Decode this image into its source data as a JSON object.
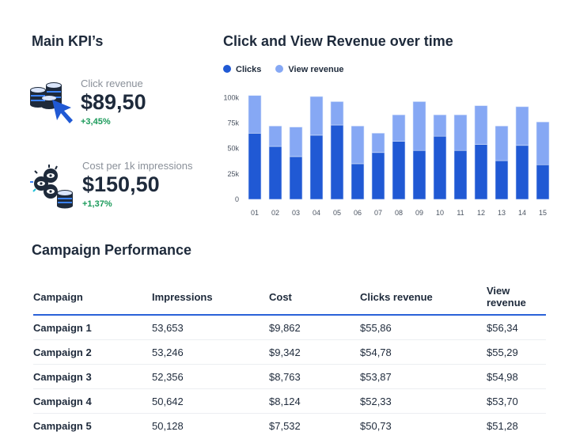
{
  "kpi": {
    "title": "Main KPI’s",
    "items": [
      {
        "label": "Click revenue",
        "value": "$89,50",
        "change": "+3,45%",
        "icon": "coins-cursor-icon"
      },
      {
        "label": "Cost per 1k impressions",
        "value": "$150,50",
        "change": "+1,37%",
        "icon": "eyes-coins-icon"
      }
    ]
  },
  "chart_title": "Click and View Revenue over time",
  "chart_data": {
    "type": "bar",
    "stacked": true,
    "title": "Click and View Revenue over time",
    "categories": [
      "01",
      "02",
      "03",
      "04",
      "05",
      "06",
      "07",
      "08",
      "09",
      "10",
      "11",
      "12",
      "13",
      "14",
      "15"
    ],
    "series": [
      {
        "name": "Clicks",
        "color": "#2059d4",
        "values": [
          65,
          52,
          42,
          63,
          73,
          35,
          46,
          57,
          48,
          62,
          48,
          54,
          38,
          53,
          34
        ]
      },
      {
        "name": "View revenue",
        "color": "#86a8f4",
        "values": [
          37,
          20,
          29,
          38,
          23,
          37,
          19,
          26,
          48,
          21,
          35,
          38,
          34,
          38,
          42
        ]
      }
    ],
    "yticks": [
      "0",
      "25k",
      "50k",
      "75k",
      "100k"
    ],
    "ylim": [
      0,
      100
    ],
    "legend": "top-left",
    "grid": false
  },
  "table": {
    "title": "Campaign Performance",
    "headers": [
      "Campaign",
      "Impressions",
      "Cost",
      "Clicks revenue",
      "View revenue"
    ],
    "rows": [
      [
        "Campaign 1",
        "53,653",
        "$9,862",
        "$55,86",
        "$56,34"
      ],
      [
        "Campaign 2",
        "53,246",
        "$9,342",
        "$54,78",
        "$55,29"
      ],
      [
        "Campaign 3",
        "52,356",
        "$8,763",
        "$53,87",
        "$54,98"
      ],
      [
        "Campaign 4",
        "50,642",
        "$8,124",
        "$52,33",
        "$53,70"
      ],
      [
        "Campaign 5",
        "50,128",
        "$7,532",
        "$50,73",
        "$51,28"
      ]
    ]
  }
}
